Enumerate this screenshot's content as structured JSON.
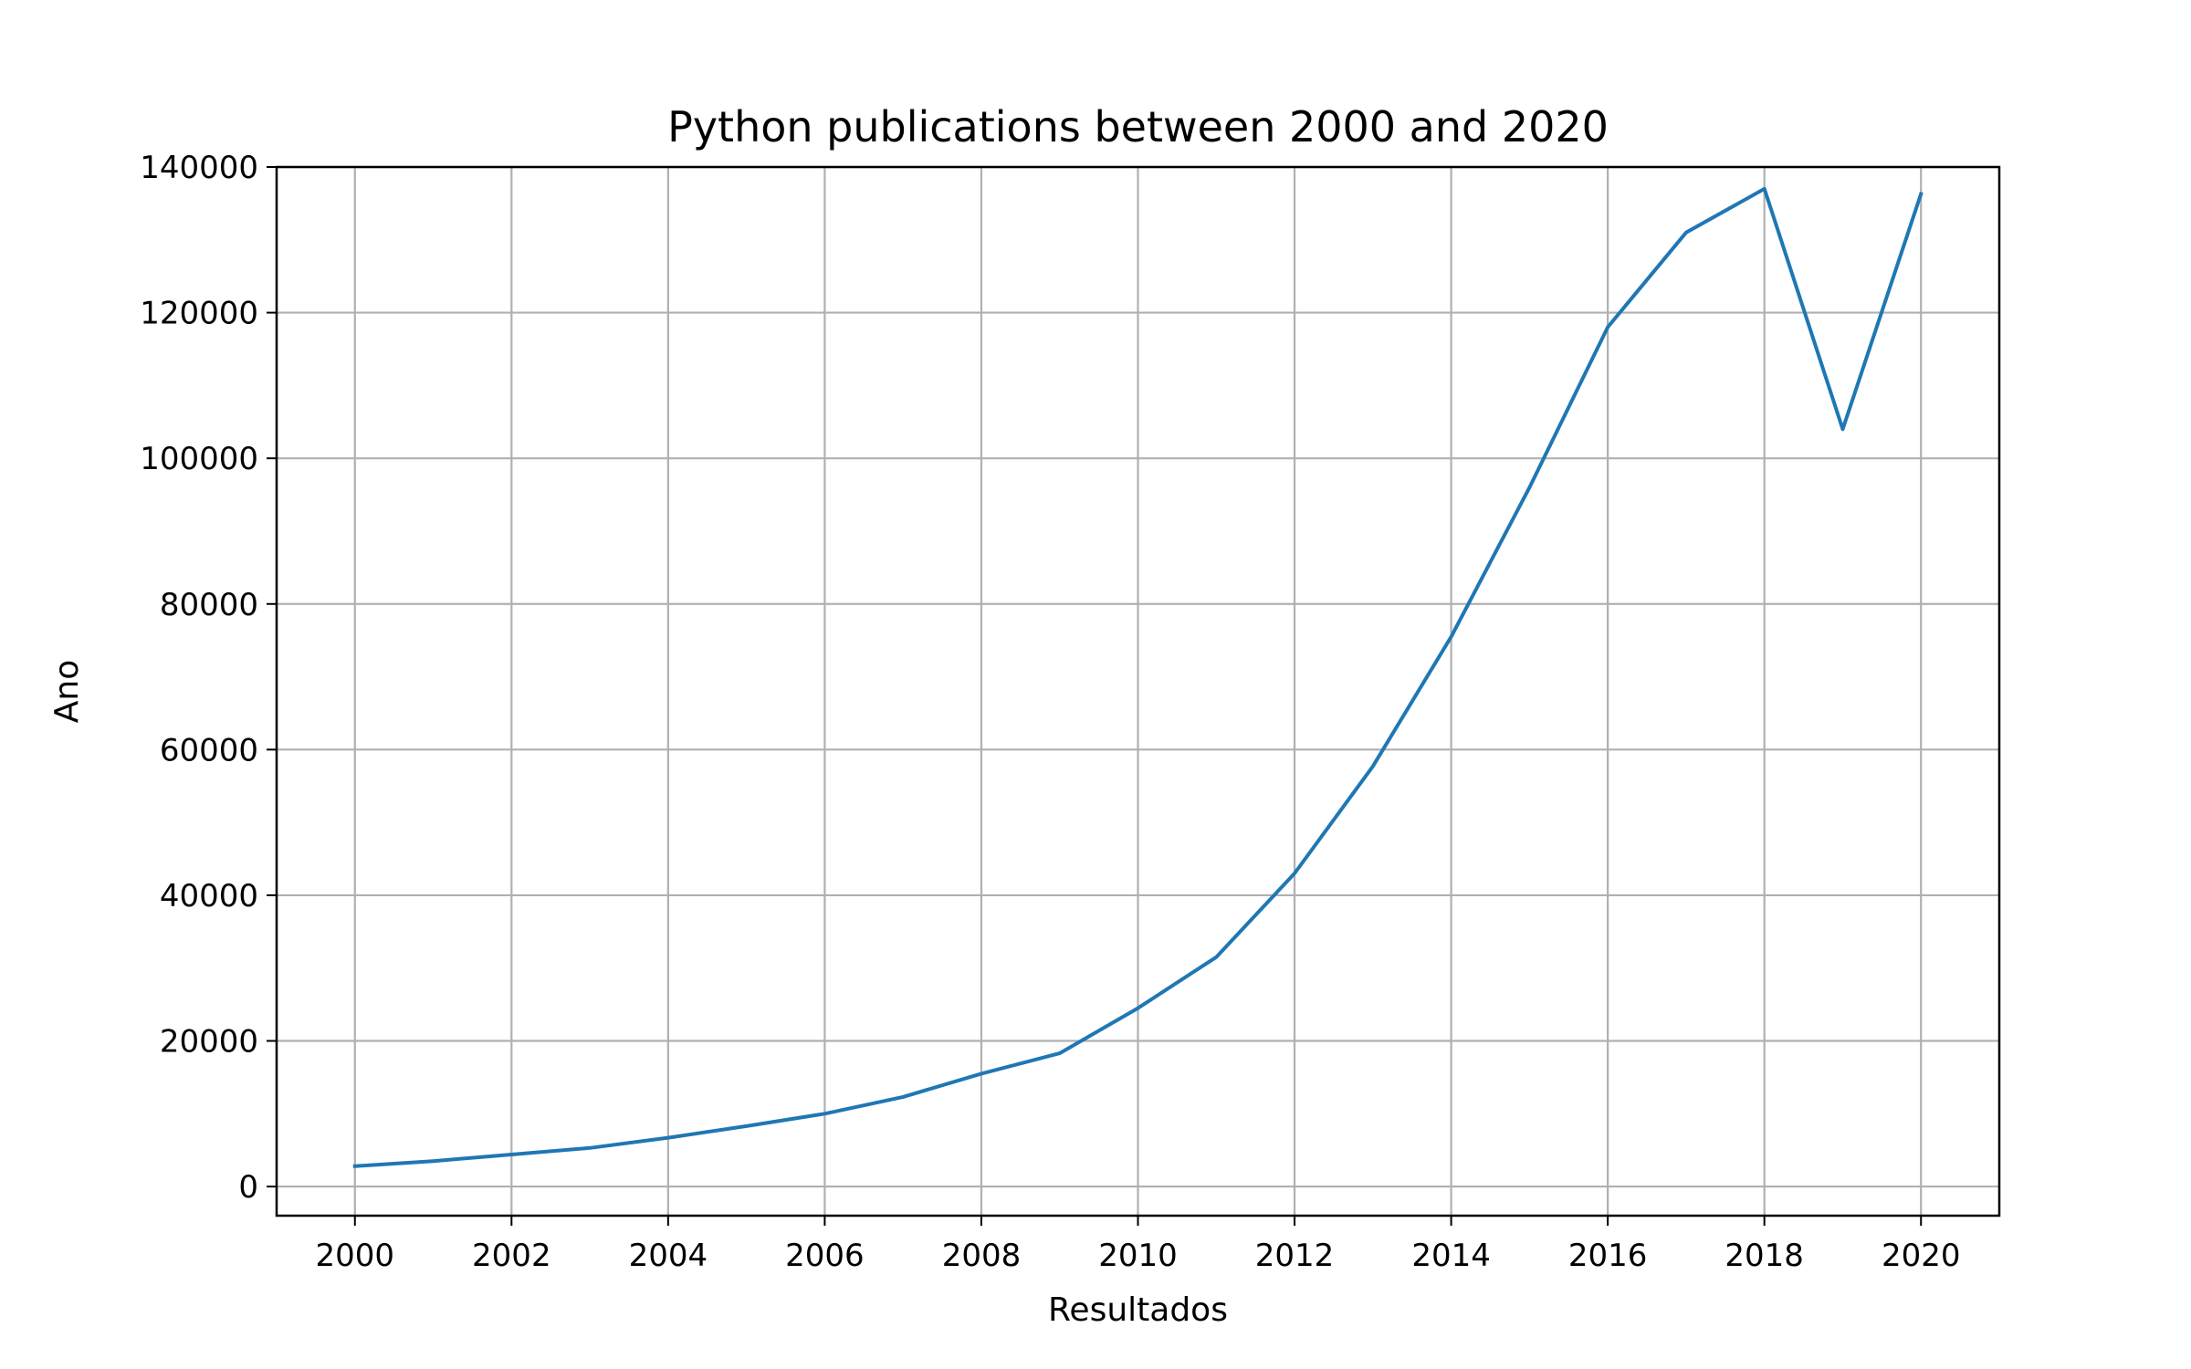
{
  "chart_data": {
    "type": "line",
    "title": "Python publications between 2000 and 2020",
    "xlabel": "Resultados",
    "ylabel": "Ano",
    "xlim": [
      1999,
      2021
    ],
    "ylim": [
      -4000,
      140000
    ],
    "x_ticks": [
      2000,
      2002,
      2004,
      2006,
      2008,
      2010,
      2012,
      2014,
      2016,
      2018,
      2020
    ],
    "y_ticks": [
      0,
      20000,
      40000,
      60000,
      80000,
      100000,
      120000,
      140000
    ],
    "grid": true,
    "series": [
      {
        "color": "#1f77b4",
        "x": [
          2000,
          2001,
          2002,
          2003,
          2004,
          2005,
          2006,
          2007,
          2008,
          2009,
          2010,
          2011,
          2012,
          2013,
          2014,
          2015,
          2016,
          2017,
          2018,
          2019,
          2020
        ],
        "y": [
          2800,
          3500,
          4400,
          5300,
          6700,
          8300,
          10000,
          12300,
          15500,
          18300,
          24500,
          31500,
          43000,
          57700,
          75500,
          96000,
          118000,
          131000,
          137000,
          104000,
          136300
        ]
      }
    ]
  }
}
